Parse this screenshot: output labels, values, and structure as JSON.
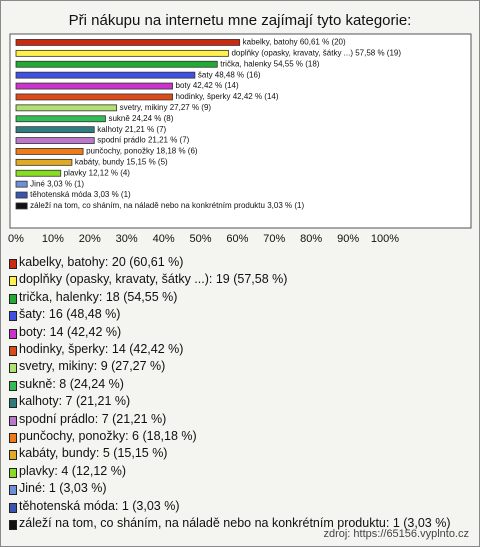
{
  "chart_data": {
    "type": "bar",
    "orientation": "horizontal",
    "title": "Při nákupu na internetu mne zajímají tyto kategorie:",
    "categories": [
      "kabelky, batohy",
      "doplňky (opasky, kravaty, šátky ...)",
      "trička, halenky",
      "šaty",
      "boty",
      "hodinky, šperky",
      "svetry, mikiny",
      "sukně",
      "kalhoty",
      "spodní prádlo",
      "punčochy, ponožky",
      "kabáty, bundy",
      "plavky",
      "Jiné",
      "těhotenská móda",
      "záleží na tom, co sháním, na náladě nebo na konkrétním produktu"
    ],
    "values": [
      60.61,
      57.58,
      54.55,
      48.48,
      42.42,
      42.42,
      27.27,
      24.24,
      21.21,
      21.21,
      18.18,
      15.15,
      12.12,
      3.03,
      3.03,
      3.03
    ],
    "value_labels": [
      "kabelky, batohy 60,61 % (20)",
      "doplňky (opasky, kravaty, šátky ...) 57,58 % (19)",
      "trička, halenky 54,55 % (18)",
      "šaty 48,48 % (16)",
      "boty 42,42 % (14)",
      "hodinky, šperky 42,42 % (14)",
      "svetry, mikiny 27,27 % (9)",
      "sukně 24,24 % (8)",
      "kalhoty 21,21 % (7)",
      "spodní prádlo 21,21 % (7)",
      "punčochy, ponožky 18,18 % (6)",
      "kabáty, bundy 15,15 % (5)",
      "plavky 12,12 % (4)",
      "Jiné 3,03 % (1)",
      "těhotenská móda 3,03 % (1)",
      "záleží na tom, co sháním, na náladě nebo na konkrétním produktu 3,03 % (1)"
    ],
    "legend": [
      "kabelky, batohy: 20 (60,61 %)",
      "doplňky (opasky, kravaty, šátky ...): 19 (57,58 %)",
      "trička, halenky: 18 (54,55 %)",
      "šaty: 16 (48,48 %)",
      "boty: 14 (42,42 %)",
      "hodinky, šperky: 14 (42,42 %)",
      "svetry, mikiny: 9 (27,27 %)",
      "sukně: 8 (24,24 %)",
      "kalhoty: 7 (21,21 %)",
      "spodní prádlo: 7 (21,21 %)",
      "punčochy, ponožky: 6 (18,18 %)",
      "kabáty, bundy: 5 (15,15 %)",
      "plavky: 4 (12,12 %)",
      "Jiné: 1 (3,03 %)",
      "těhotenská móda: 1 (3,03 %)",
      "záleží na tom, co sháním, na náladě nebo na konkrétním produktu: 1 (3,03 %)"
    ],
    "colors": [
      "#cc2a10",
      "#fff04a",
      "#22aa33",
      "#4050e0",
      "#cc33cc",
      "#dd4a1a",
      "#b0e070",
      "#33bb55",
      "#2f7c80",
      "#bb77cc",
      "#ee7a18",
      "#e0aa22",
      "#88dd22",
      "#6f8fd8",
      "#3a55b0",
      "#111111"
    ],
    "xlim": [
      0,
      100
    ],
    "xticks": [
      {
        "value": 0,
        "label": "0%"
      },
      {
        "value": 10,
        "label": "10%"
      },
      {
        "value": 20,
        "label": "20%"
      },
      {
        "value": 30,
        "label": "30%"
      },
      {
        "value": 40,
        "label": "40%"
      },
      {
        "value": 50,
        "label": "50%"
      },
      {
        "value": 60,
        "label": "60%"
      },
      {
        "value": 70,
        "label": "70%"
      },
      {
        "value": 80,
        "label": "80%"
      },
      {
        "value": 90,
        "label": "90%"
      },
      {
        "value": 100,
        "label": "100%"
      }
    ],
    "grid": false,
    "source": "zdroj: https://65156.vyplnto.cz"
  }
}
